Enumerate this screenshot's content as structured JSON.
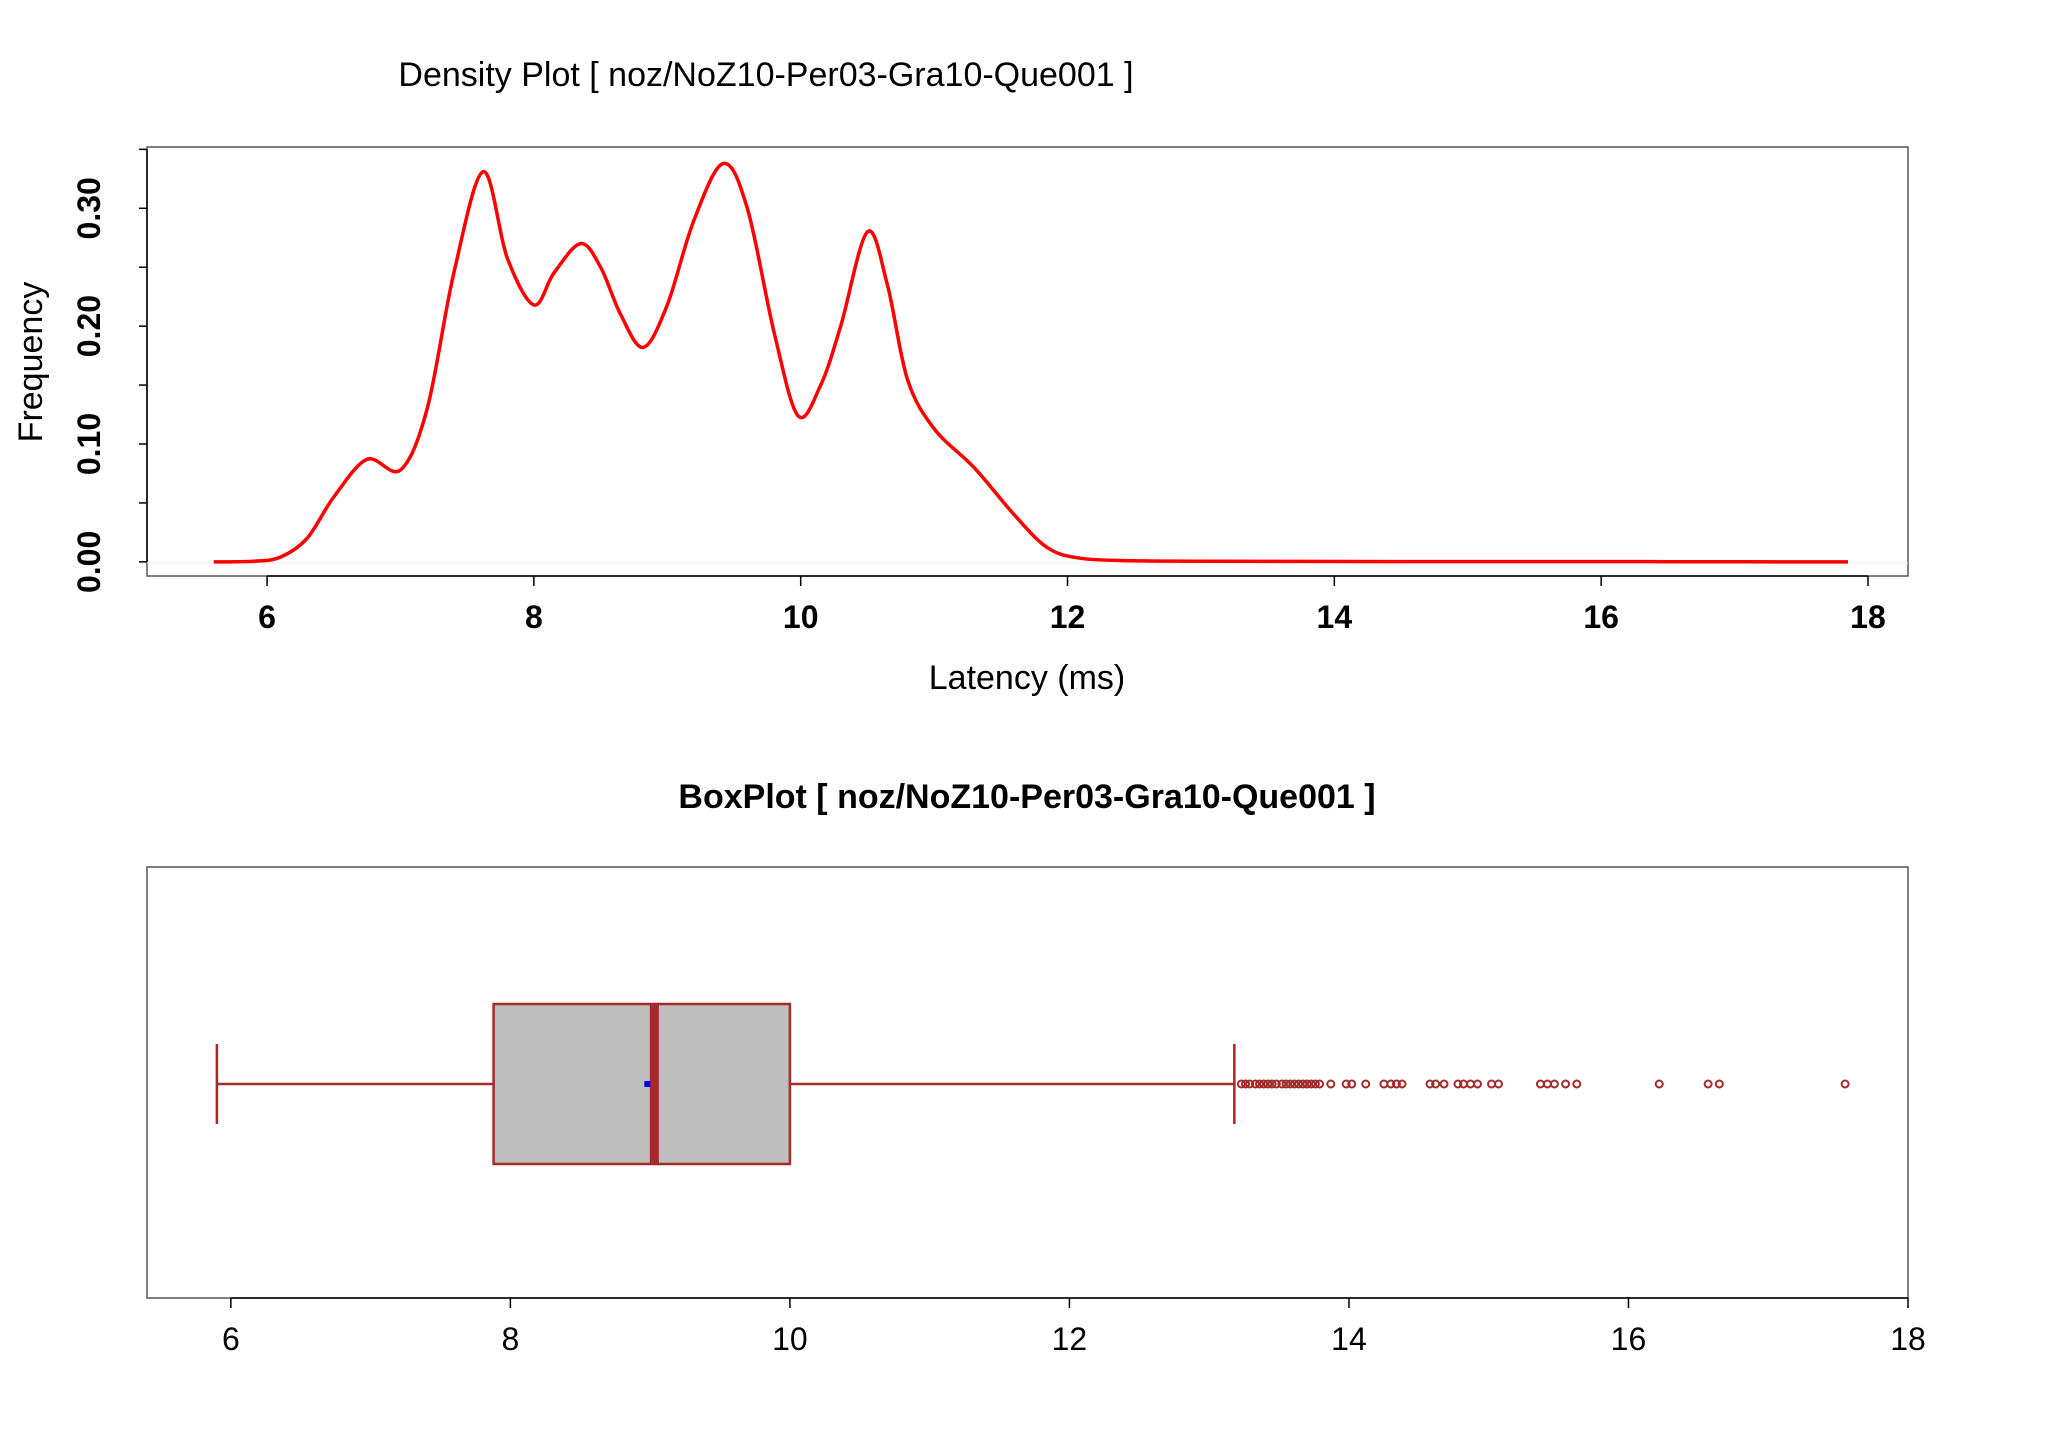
{
  "chart_data": [
    {
      "type": "line",
      "title": "Density Plot [ noz/NoZ10-Per03-Gra10-Que001 ]",
      "xlabel": "Latency (ms)",
      "ylabel": "Frequency",
      "x_ticks": [
        "6",
        "8",
        "10",
        "12",
        "14",
        "16",
        "18"
      ],
      "y_ticks": [
        "0.00",
        "0.10",
        "0.20",
        "0.30"
      ],
      "xlim": [
        5.1,
        18.3
      ],
      "ylim": [
        -0.012,
        0.352
      ],
      "grid": false,
      "series": [
        {
          "color": "#ff0000",
          "x": [
            5.6,
            5.9,
            6.1,
            6.3,
            6.5,
            6.75,
            7.0,
            7.2,
            7.4,
            7.62,
            7.8,
            8.0,
            8.15,
            8.35,
            8.5,
            8.65,
            8.82,
            9.0,
            9.2,
            9.42,
            9.6,
            9.8,
            9.98,
            10.15,
            10.3,
            10.5,
            10.65,
            10.8,
            11.0,
            11.3,
            11.6,
            11.85,
            12.1,
            12.5,
            13.0,
            13.7,
            14.5,
            15.5,
            16.5,
            17.85
          ],
          "y": [
            0.0,
            0.0005,
            0.004,
            0.02,
            0.055,
            0.087,
            0.078,
            0.13,
            0.245,
            0.331,
            0.258,
            0.218,
            0.245,
            0.27,
            0.25,
            0.21,
            0.182,
            0.218,
            0.29,
            0.338,
            0.3,
            0.195,
            0.124,
            0.15,
            0.2,
            0.28,
            0.235,
            0.155,
            0.113,
            0.08,
            0.04,
            0.012,
            0.003,
            0.001,
            0.0005,
            0.0004,
            0.0002,
            0.0002,
            0.0001,
            0.0
          ]
        }
      ]
    },
    {
      "type": "box",
      "title": "BoxPlot [ noz/NoZ10-Per03-Gra10-Que001 ]",
      "x_ticks": [
        "6",
        "8",
        "10",
        "12",
        "14",
        "16",
        "18"
      ],
      "xlim": [
        5.4,
        18.0
      ],
      "orientation": "horizontal",
      "box_color": "#bebebe",
      "line_color": "#a52a2a",
      "mean_color": "#0000ff",
      "whisker_low": 5.9,
      "q1": 7.88,
      "median": 9.03,
      "q3": 10.0,
      "whisker_high": 13.18,
      "mean": 8.98,
      "outliers": [
        13.23,
        13.26,
        13.29,
        13.33,
        13.36,
        13.39,
        13.42,
        13.45,
        13.48,
        13.52,
        13.55,
        13.58,
        13.61,
        13.64,
        13.67,
        13.7,
        13.73,
        13.76,
        13.79,
        13.87,
        13.98,
        14.02,
        14.12,
        14.25,
        14.3,
        14.34,
        14.38,
        14.58,
        14.62,
        14.68,
        14.78,
        14.82,
        14.87,
        14.92,
        15.02,
        15.07,
        15.37,
        15.42,
        15.47,
        15.55,
        15.63,
        16.22,
        16.57,
        16.65,
        17.55
      ]
    }
  ]
}
